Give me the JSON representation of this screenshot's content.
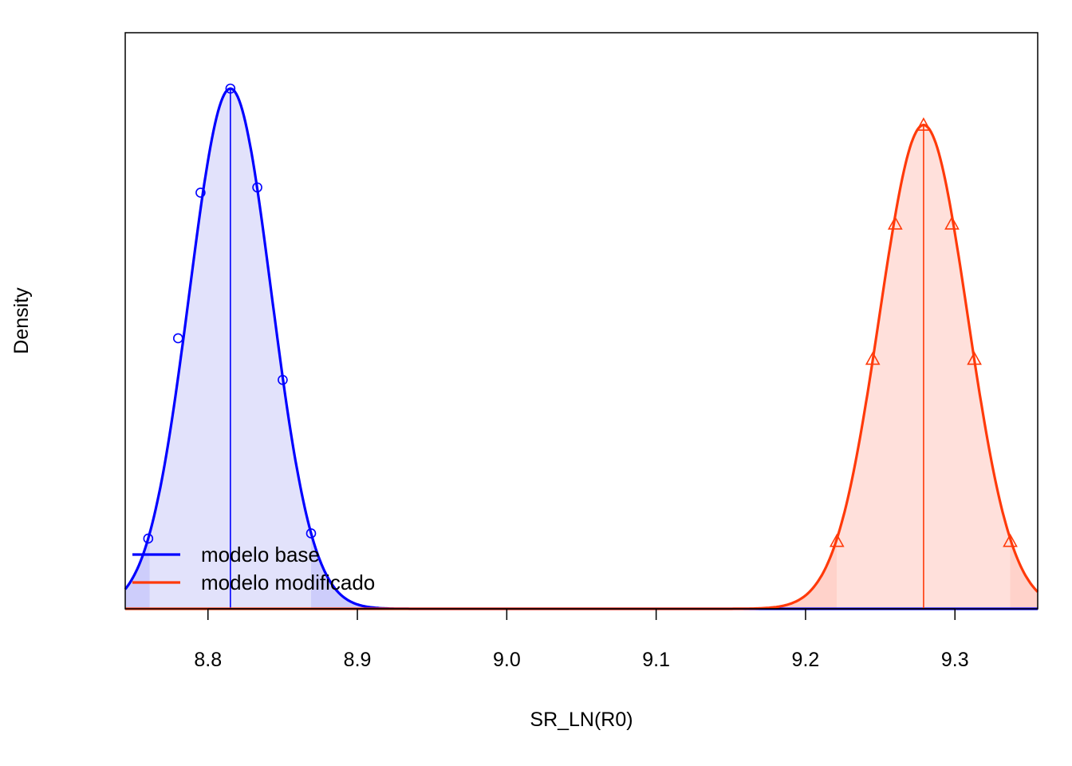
{
  "chart_data": {
    "type": "line",
    "title": "",
    "xlabel": "SR_LN(R0)",
    "ylabel": "Density",
    "xlim": [
      8.7446,
      9.3554
    ],
    "xticks": [
      8.8,
      8.9,
      9.0,
      9.1,
      9.2,
      9.3
    ],
    "xtick_labels": [
      "8.8",
      "8.9",
      "9.0",
      "9.1",
      "9.2",
      "9.3"
    ],
    "y_axis_ticks_shown": false,
    "grid": false,
    "legend": {
      "placement": "bottom-left"
    },
    "series": [
      {
        "name": "modelo base",
        "color": "#0000ff",
        "fill": "#e2e2fb",
        "tail_fill": "#cdcdfb",
        "marker": "circle",
        "mean": 8.815,
        "sd": 0.0275,
        "peak_density": 1.0,
        "interval": [
          8.761,
          8.869
        ],
        "curve_x": [
          8.74,
          8.76,
          8.78,
          8.795,
          8.815,
          8.833,
          8.85,
          8.869,
          8.89,
          8.92
        ],
        "curve_density": [
          0.062,
          0.135,
          0.52,
          0.8,
          1.0,
          0.81,
          0.44,
          0.145,
          0.02,
          0.001
        ]
      },
      {
        "name": "modelo modificado",
        "color": "#ff3a0a",
        "fill": "#ffe0db",
        "tail_fill": "#ffd2ca",
        "marker": "triangle",
        "mean": 9.279,
        "sd": 0.0295,
        "peak_density": 0.93,
        "interval": [
          9.221,
          9.337
        ],
        "curve_x": [
          9.17,
          9.2,
          9.221,
          9.245,
          9.26,
          9.279,
          9.298,
          9.313,
          9.337,
          9.355
        ],
        "curve_density": [
          0.004,
          0.06,
          0.13,
          0.48,
          0.74,
          0.93,
          0.74,
          0.48,
          0.13,
          0.035
        ]
      }
    ]
  }
}
